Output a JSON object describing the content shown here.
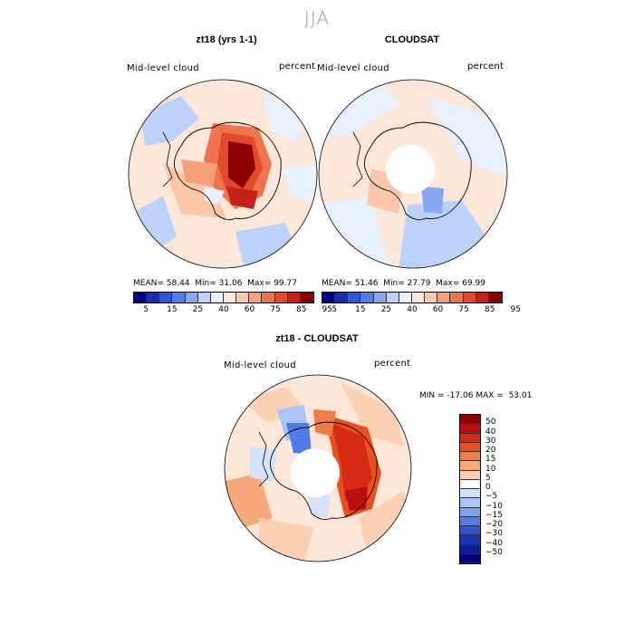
{
  "figure": {
    "season_title": "JJA"
  },
  "panels": [
    {
      "title": "zt18 (yrs 1-1)",
      "variable_label": "Mid-level cloud",
      "units_label": "percent",
      "stats": {
        "mean_label": "MEAN=",
        "mean": "58.44",
        "min_label": "Min=",
        "min": "31.06",
        "max_label": "Max=",
        "max": "99.77"
      }
    },
    {
      "title": "CLOUDSAT",
      "variable_label": "Mid-level cloud",
      "units_label": "percent",
      "stats": {
        "mean_label": "MEAN=",
        "mean": "51.46",
        "min_label": "Min=",
        "min": "27.79",
        "max_label": "Max=",
        "max": "69.99"
      }
    },
    {
      "title": "zt18 - CLOUDSAT",
      "variable_label": "Mid-level cloud",
      "units_label": "percent",
      "stats": {
        "min_label": "MIN =",
        "min": "-17.06",
        "max_label": "MAX =",
        "max": "53.01"
      }
    }
  ],
  "colorbar_abs": {
    "colors": [
      "#00008b",
      "#1b2bb0",
      "#2f55d9",
      "#4f7cf0",
      "#86a8f5",
      "#bcd2fb",
      "#e8f1ff",
      "#fde7d8",
      "#fbc7a8",
      "#f5a078",
      "#ee7450",
      "#e24a2b",
      "#c42216",
      "#8b0000"
    ],
    "tick_labels": [
      "5",
      "15",
      "25",
      "40",
      "60",
      "75",
      "85",
      "95"
    ]
  },
  "colorbar_diff": {
    "colors": [
      "#8b0000",
      "#b81010",
      "#d62a14",
      "#e8501e",
      "#f47c44",
      "#f9a87a",
      "#fcd0b2",
      "#ffffff",
      "#d4e3fb",
      "#a9c5f7",
      "#7ca4f1",
      "#4f7ee8",
      "#2b55d6",
      "#1a35b5",
      "#0d1f98",
      "#000080"
    ],
    "tick_labels": [
      "50",
      "40",
      "30",
      "20",
      "15",
      "10",
      "5",
      "0",
      "−5",
      "−10",
      "−15",
      "−20",
      "−30",
      "−40",
      "−50"
    ]
  }
}
